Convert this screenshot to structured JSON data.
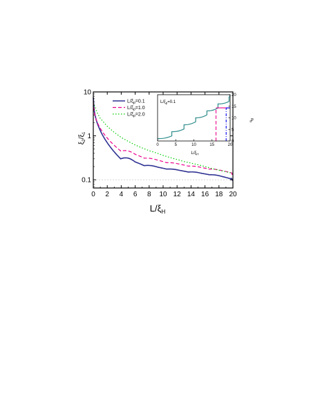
{
  "chart_data": [
    {
      "id": "main",
      "type": "line",
      "xlabel_main": "L/ξ",
      "xlabel_sub": "H",
      "ylabel_main": "ξ",
      "ylabel_sub1": "2",
      "ylabel_sub2": "1",
      "xlim": [
        0,
        20
      ],
      "ylim": [
        0.065,
        10
      ],
      "yscale": "log",
      "xticks": [
        0,
        2,
        4,
        6,
        8,
        10,
        12,
        14,
        16,
        18,
        20
      ],
      "yticks": [
        {
          "v": 0.1,
          "label": "0.1"
        },
        {
          "v": 1,
          "label": "1"
        },
        {
          "v": 10,
          "label": "10"
        }
      ],
      "reference_line": {
        "y": 0.1,
        "style": "dashed",
        "color": "#bbbbbb"
      },
      "legend_position": "top-left",
      "legend": [
        {
          "pre": "L/ξ",
          "sub": "p",
          "post": "=0.1",
          "color": "#2e3192",
          "dash": "solid"
        },
        {
          "pre": "L/ξ",
          "sub": "p",
          "post": "=1.0",
          "color": "#ec008c",
          "dash": "dashed"
        },
        {
          "pre": "L/ξ",
          "sub": "p",
          "post": "=2.0",
          "color": "#00cc00",
          "dash": "dotted"
        }
      ],
      "series": [
        {
          "color": "#2e3192",
          "dash": "solid",
          "arches": [
            [
              0,
              7.5,
              3.3
            ],
            [
              3.92,
              0.3,
              0.35
            ],
            [
              7.28,
              0.21,
              0.22
            ],
            [
              10.5,
              0.175,
              0.18
            ],
            [
              13.6,
              0.15,
              0.155
            ],
            [
              16.65,
              0.13,
              0.133
            ],
            [
              19.7,
              0.105,
              0.112
            ]
          ],
          "end": [
            20,
            0.095
          ]
        },
        {
          "color": "#ec008c",
          "dash": "dashed",
          "arches": [
            [
              0,
              6,
              2.5
            ],
            [
              3.95,
              0.45,
              0.5
            ],
            [
              7.3,
              0.31,
              0.32
            ],
            [
              10.5,
              0.245,
              0.25
            ],
            [
              13.6,
              0.205,
              0.21
            ],
            [
              16.6,
              0.175,
              0.178
            ],
            [
              19.7,
              0.145,
              0.15
            ]
          ],
          "end": [
            20,
            0.12
          ]
        },
        {
          "color": "#00cc00",
          "dash": "dotted",
          "points": [
            [
              0,
              5.8
            ],
            [
              0.5,
              3.5
            ],
            [
              1,
              2.5
            ],
            [
              2,
              1.65
            ],
            [
              3,
              1.2
            ],
            [
              4,
              0.92
            ],
            [
              5,
              0.75
            ],
            [
              6,
              0.62
            ],
            [
              7,
              0.53
            ],
            [
              8,
              0.46
            ],
            [
              9,
              0.41
            ],
            [
              10,
              0.36
            ],
            [
              11,
              0.32
            ],
            [
              12,
              0.29
            ],
            [
              13,
              0.26
            ],
            [
              14,
              0.24
            ],
            [
              15,
              0.22
            ],
            [
              16,
              0.2
            ],
            [
              17,
              0.18
            ],
            [
              18,
              0.165
            ],
            [
              19,
              0.152
            ],
            [
              20,
              0.14
            ]
          ]
        }
      ]
    },
    {
      "id": "inset",
      "type": "line",
      "title_pre": "L/ξ",
      "title_sub": "p",
      "title_post": "=0.1",
      "xlabel_main": "L/ξ",
      "xlabel_sub": "H",
      "ylabel_main": "n",
      "ylabel_sub": "b",
      "xlim": [
        0,
        20
      ],
      "ylim": [
        0,
        20
      ],
      "xticks": [
        0,
        5,
        10,
        15,
        20
      ],
      "yticks": [
        0,
        5,
        10,
        15,
        20
      ],
      "step_color": "#2e8b8b",
      "steps": {
        "start": [
          0,
          1
        ],
        "jumps": [
          3.92,
          7.28,
          10.5,
          13.6,
          16.65,
          19.7
        ],
        "level_heights": [
          [
            1,
            2.2
          ],
          [
            4,
            5.2
          ],
          [
            7,
            8.3
          ],
          [
            10,
            11.3
          ],
          [
            13,
            14.3
          ],
          [
            16,
            17.1
          ],
          [
            19,
            20
          ]
        ],
        "end": [
          20,
          20
        ]
      },
      "markers": [
        {
          "x": 16.1,
          "y": 14.3,
          "color": "#ec008c",
          "dash": "dashed"
        },
        {
          "x": 18.9,
          "y": 14.3,
          "color": "#0000ee",
          "dash": "dashdot"
        }
      ]
    }
  ]
}
